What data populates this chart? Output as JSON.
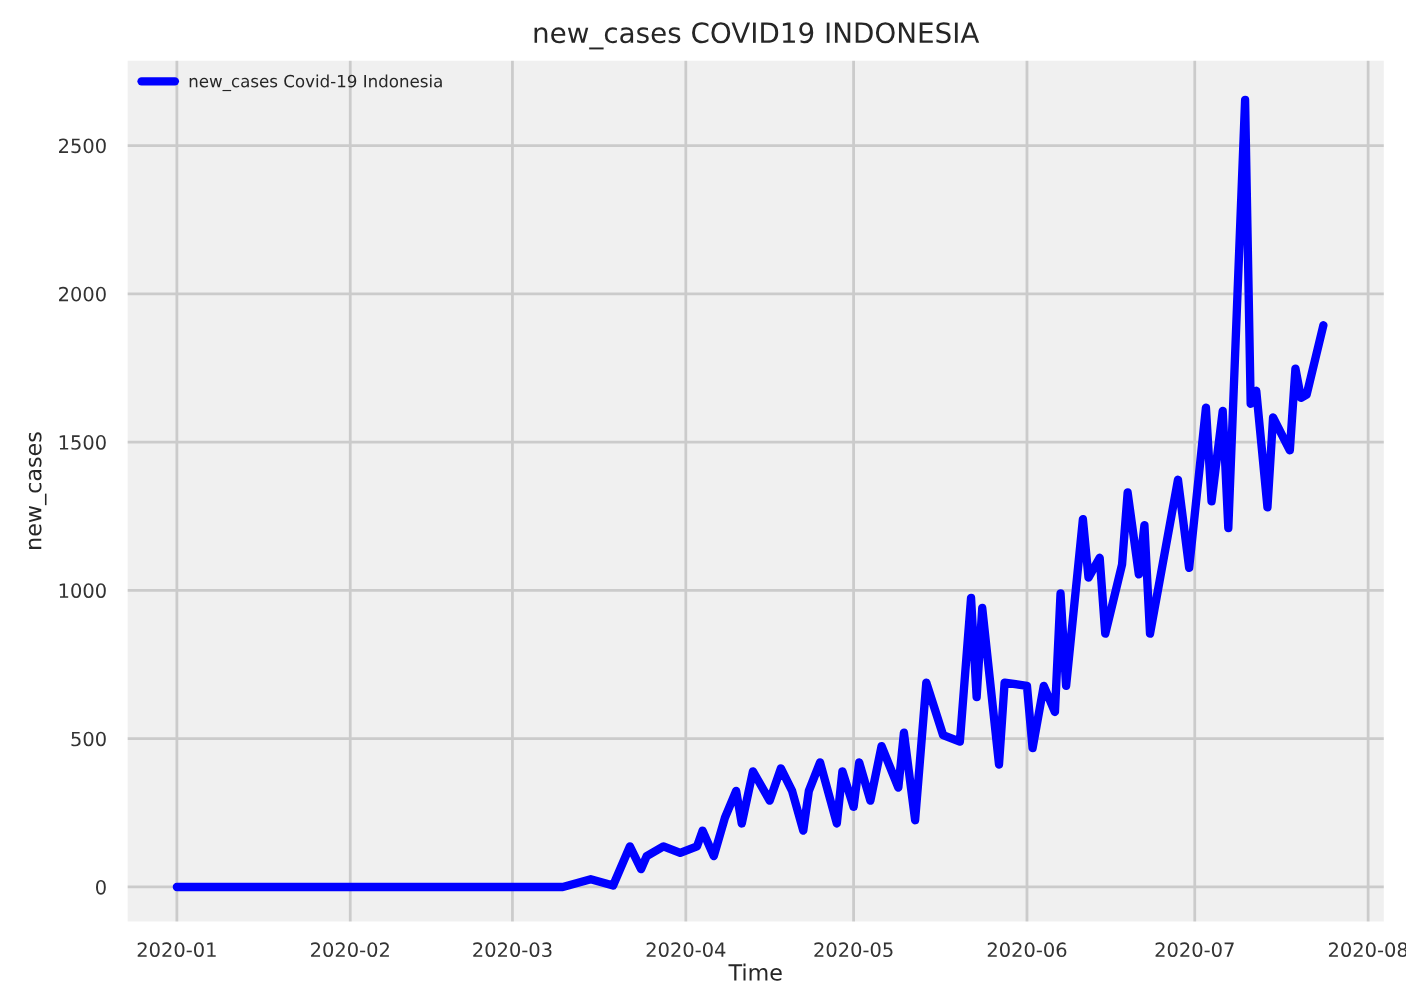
{
  "chart_data": {
    "type": "line",
    "title": "new_cases COVID19 INDONESIA",
    "xlabel": "Time",
    "ylabel": "new_cases",
    "x": [
      "2020-01-01",
      "2020-03-01",
      "2020-03-10",
      "2020-03-15",
      "2020-03-19",
      "2020-03-22",
      "2020-03-24",
      "2020-03-25",
      "2020-03-28",
      "2020-03-31",
      "2020-04-03",
      "2020-04-04",
      "2020-04-06",
      "2020-04-08",
      "2020-04-10",
      "2020-04-11",
      "2020-04-13",
      "2020-04-16",
      "2020-04-18",
      "2020-04-20",
      "2020-04-22",
      "2020-04-23",
      "2020-04-25",
      "2020-04-28",
      "2020-04-29",
      "2020-05-01",
      "2020-05-02",
      "2020-05-04",
      "2020-05-06",
      "2020-05-09",
      "2020-05-10",
      "2020-05-12",
      "2020-05-14",
      "2020-05-17",
      "2020-05-20",
      "2020-05-22",
      "2020-05-23",
      "2020-05-24",
      "2020-05-27",
      "2020-05-28",
      "2020-06-01",
      "2020-06-02",
      "2020-06-04",
      "2020-06-06",
      "2020-06-07",
      "2020-06-08",
      "2020-06-11",
      "2020-06-12",
      "2020-06-14",
      "2020-06-15",
      "2020-06-18",
      "2020-06-19",
      "2020-06-21",
      "2020-06-22",
      "2020-06-23",
      "2020-06-28",
      "2020-06-30",
      "2020-07-03",
      "2020-07-04",
      "2020-07-06",
      "2020-07-07",
      "2020-07-10",
      "2020-07-11",
      "2020-07-12",
      "2020-07-14",
      "2020-07-15",
      "2020-07-18",
      "2020-07-19",
      "2020-07-20",
      "2020-07-21",
      "2020-07-24"
    ],
    "series": [
      {
        "name": "new_cases Covid-19 Indonesia",
        "color": "#0000ff",
        "values": [
          0,
          0,
          0,
          26,
          5,
          137,
          60,
          104,
          137,
          115,
          137,
          190,
          104,
          234,
          324,
          214,
          390,
          291,
          400,
          324,
          190,
          324,
          420,
          214,
          390,
          270,
          420,
          291,
          475,
          335,
          520,
          225,
          689,
          512,
          490,
          975,
          640,
          941,
          413,
          689,
          678,
          468,
          678,
          590,
          990,
          678,
          1240,
          1043,
          1110,
          854,
          1087,
          1330,
          1054,
          1220,
          854,
          1373,
          1076,
          1616,
          1300,
          1605,
          1210,
          2654,
          1629,
          1673,
          1280,
          1583,
          1472,
          1748,
          1649,
          1660,
          1894
        ]
      }
    ],
    "xlim": [
      "2019-12-23",
      "2020-08-04"
    ],
    "xticks": [
      "2020-01",
      "2020-02",
      "2020-03",
      "2020-04",
      "2020-05",
      "2020-06",
      "2020-07",
      "2020-08"
    ],
    "ylim": [
      -120,
      2790
    ],
    "yticks": [
      0,
      500,
      1000,
      1500,
      2000,
      2500
    ],
    "grid": true,
    "legend": "top left",
    "marker": "none",
    "line_style": "solid"
  }
}
